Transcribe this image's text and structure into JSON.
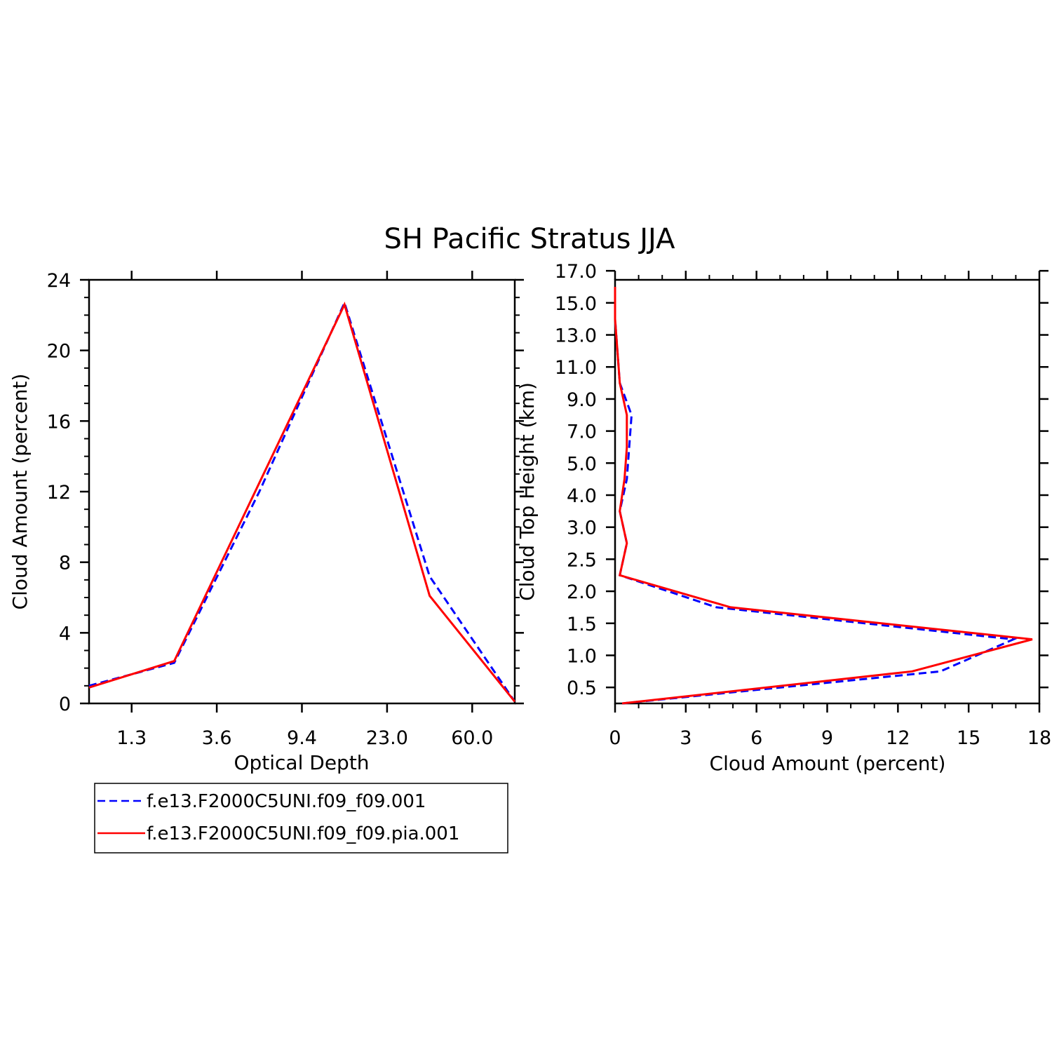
{
  "title": "SH Pacific Stratus JJA",
  "colors": {
    "series_a": "#0000ff",
    "series_b": "#ff0000",
    "axis": "#000000"
  },
  "legend": {
    "placement": "below-left",
    "entries": [
      {
        "label": "f.e13.F2000C5UNI.f09_f09.001",
        "color": "#0000ff",
        "style": "dashed"
      },
      {
        "label": "f.e13.F2000C5UNI.f09_f09.pia.001",
        "color": "#ff0000",
        "style": "solid"
      }
    ]
  },
  "chart_data": [
    {
      "type": "line",
      "xlabel": "Optical Depth",
      "ylabel": "Cloud Amount (percent)",
      "x_bin_index": [
        0,
        1,
        2,
        3,
        4,
        5
      ],
      "x_ticks": [
        {
          "pos": 0.5,
          "label": "1.3"
        },
        {
          "pos": 1.5,
          "label": "3.6"
        },
        {
          "pos": 2.5,
          "label": "9.4"
        },
        {
          "pos": 3.5,
          "label": "23.0"
        },
        {
          "pos": 4.5,
          "label": "60.0"
        }
      ],
      "xlim": [
        0,
        5
      ],
      "ylim": [
        0,
        24
      ],
      "y_ticks": [
        0,
        4,
        8,
        12,
        16,
        20,
        24
      ],
      "series": [
        {
          "values": [
            1.0,
            2.3,
            12.0,
            22.7,
            7.2,
            0.1
          ]
        },
        {
          "values": [
            0.9,
            2.4,
            12.5,
            22.6,
            6.1,
            0.1
          ]
        }
      ]
    },
    {
      "type": "line",
      "orientation": "horizontal",
      "xlabel": "Cloud Amount (percent)",
      "ylabel": "Cloud Top Height (km)",
      "xlim": [
        0,
        18
      ],
      "x_ticks": [
        0,
        3,
        6,
        9,
        12,
        15,
        18
      ],
      "y_tick_labels": [
        "0.5",
        "1.0",
        "1.5",
        "2.0",
        "2.5",
        "3.0",
        "4.0",
        "5.0",
        "7.0",
        "9.0",
        "11.0",
        "13.0",
        "15.0",
        "17.0"
      ],
      "height_levels": [
        "0.0",
        "1.25",
        "1.75",
        "2.25",
        "2.75",
        "3.5",
        "4.5",
        "6.0",
        "8.0",
        "10.0",
        "12.0",
        "14.0",
        "16.0",
        "18.0"
      ],
      "series": [
        {
          "values": [
            0.3,
            13.8,
            16.9,
            4.3,
            0.2,
            0.5,
            0.2,
            0.5,
            0.6,
            0.7,
            0.2,
            0.1,
            0.0,
            0.0
          ]
        },
        {
          "values": [
            0.3,
            12.6,
            17.7,
            4.9,
            0.2,
            0.5,
            0.2,
            0.4,
            0.5,
            0.5,
            0.2,
            0.1,
            0.0,
            0.0
          ]
        }
      ]
    }
  ]
}
